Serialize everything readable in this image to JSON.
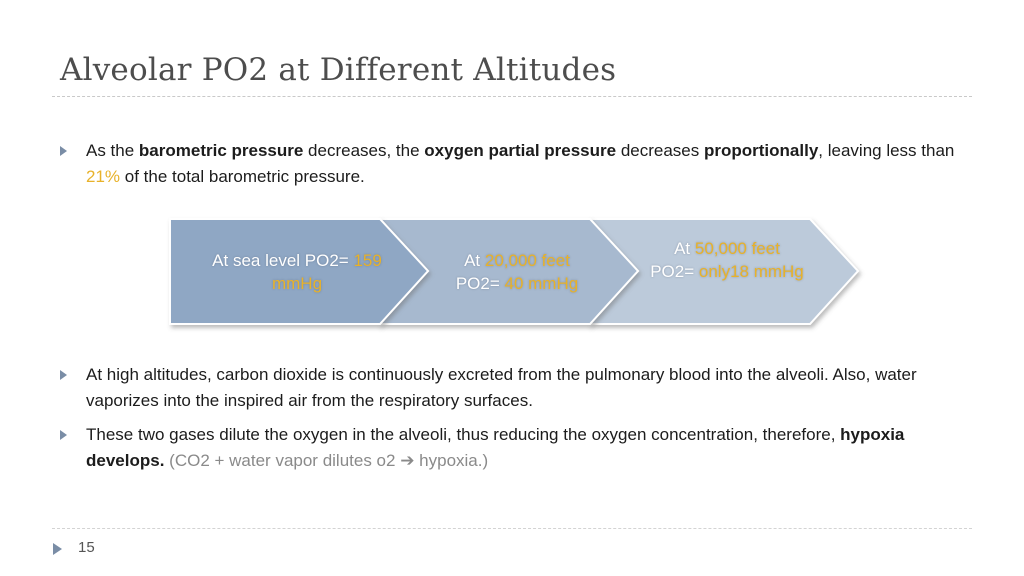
{
  "slide": {
    "title": "Alveolar PO2 at Different Altitudes",
    "page_number": "15"
  },
  "bullet1": {
    "t1": "As the ",
    "b1": "barometric pressure",
    "t2": " decreases, the ",
    "b2": "oxygen partial pressure",
    "t3": " decreases ",
    "b3": "proportionally",
    "t4": ", leaving less than ",
    "pct": "21%",
    "t5": " of  the total barometric pressure."
  },
  "chevrons": [
    {
      "prefix": "At sea level PO2= ",
      "value": "159 mmHg",
      "suffix": ""
    },
    {
      "line1_prefix": "At ",
      "line1_value": "20,000 feet",
      "line2_prefix": "PO2= ",
      "line2_value": "40 mmHg"
    },
    {
      "line1_prefix": "At ",
      "line1_value": "50,000 feet",
      "line2_prefix": "PO2= ",
      "line2_value": "only18 mmHg"
    }
  ],
  "bullet2": {
    "text": "At high altitudes, carbon dioxide is continuously excreted from the pulmonary blood into the alveoli. Also, water vaporizes into the inspired air from the respiratory surfaces."
  },
  "bullet3": {
    "t1": "These two gases dilute the oxygen in the alveoli, thus reducing the oxygen concentration, therefore, ",
    "bold": "hypoxia develops.",
    "note_start": "(CO2 + water vapor dilutes o2 ",
    "arrow": "➔",
    "note_end": " hypoxia.)"
  },
  "colors": {
    "chevron1": "#8fa7c4",
    "chevron2": "#a7b9cf",
    "chevron3": "#bccada",
    "accent": "#e8b22a",
    "bullet_marker": "#7a8da6"
  }
}
